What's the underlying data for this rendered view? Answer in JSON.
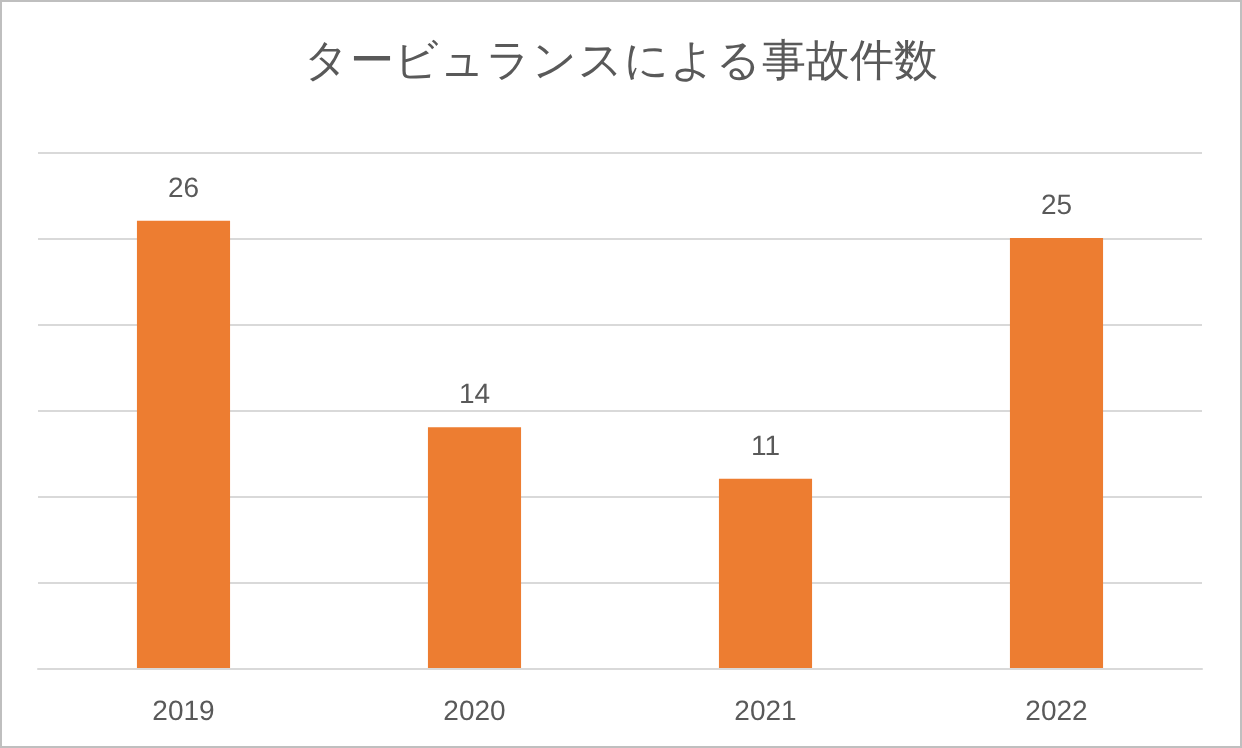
{
  "chart_data": {
    "type": "bar",
    "title": "タービュランスによる事故件数",
    "categories": [
      "2019",
      "2020",
      "2021",
      "2022"
    ],
    "values": [
      26,
      14,
      11,
      25
    ],
    "color": "#ed7d31",
    "ylim": [
      0,
      30
    ],
    "yticks": [
      {
        "value": 0,
        "label": null
      },
      {
        "value": 5,
        "label": null
      },
      {
        "value": 10,
        "label": null
      },
      {
        "value": 15,
        "label": null
      },
      {
        "value": 20,
        "label": null
      },
      {
        "value": 25,
        "label": null
      },
      {
        "value": 30,
        "label": null
      }
    ],
    "tick_labels": "x",
    "grid": "y",
    "data_labels": true
  }
}
